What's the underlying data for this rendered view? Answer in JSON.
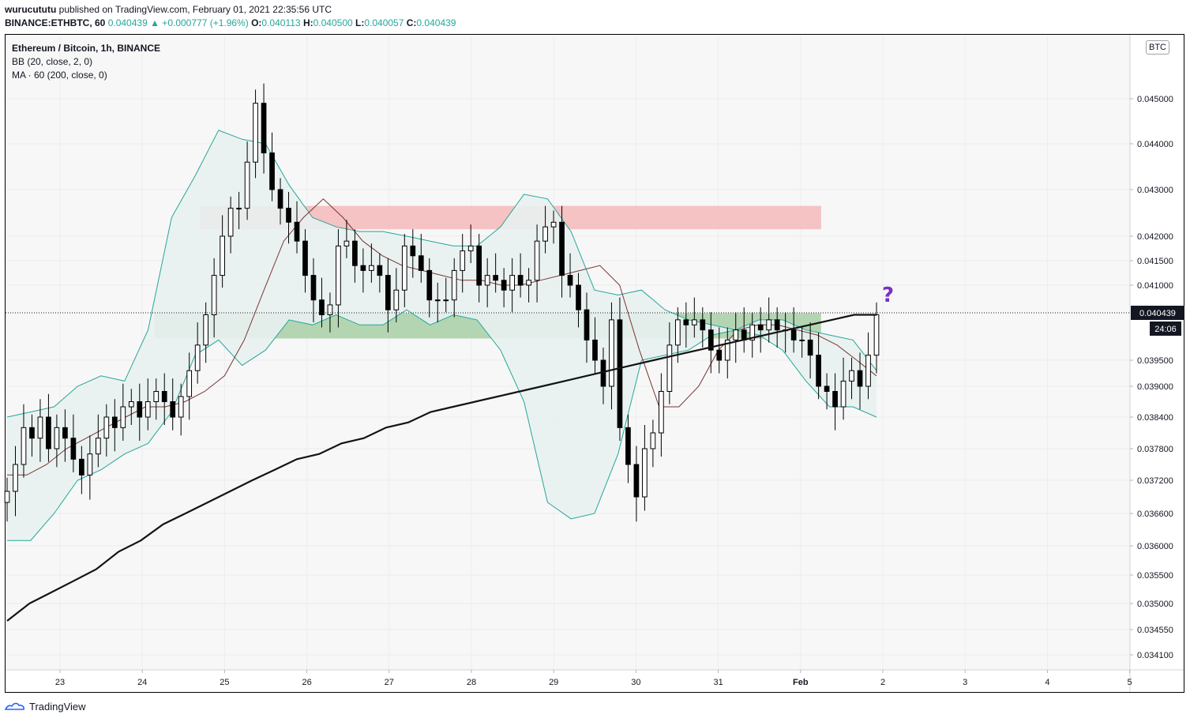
{
  "header": {
    "user": "wurucututu",
    "published_text": "published on TradingView.com, February 01, 2021 22:35:56 UTC",
    "symbol": "BINANCE:ETHBTC, 60",
    "last_price": "0.040439",
    "change": "▲ +0.000777 (+1.96%)",
    "o_label": "O:",
    "o_value": "0.040113",
    "h_label": "H:",
    "h_value": "0.040500",
    "l_label": "L:",
    "l_value": "0.040057",
    "c_label": "C:",
    "c_value": "0.040439"
  },
  "legend": {
    "title": "Ethereum / Bitcoin, 1h, BINANCE",
    "bb": "BB (20, close, 2, 0)",
    "ma": "MA · 60 (200, close, 0)"
  },
  "price_badge": "0.040439",
  "countdown_badge": "24:06",
  "unit_badge": "BTC",
  "annotation": "?",
  "footer": {
    "brand": "TradingView"
  },
  "colors": {
    "up": "#26a69a",
    "candle": "#000000",
    "bb_band": "#26a69a",
    "bb_fill": "#e8f1ef",
    "bb_basis": "#7b3434",
    "ma": "#131313",
    "resistance_zone": "#f4bcbc",
    "support_zone": "#a8cfa6",
    "annotation": "#7b2fbe"
  },
  "chart_data": {
    "type": "candlestick",
    "title": "Ethereum / Bitcoin, 1h, BINANCE",
    "unit": "BTC",
    "x_ticks": [
      "23",
      "24",
      "25",
      "26",
      "27",
      "28",
      "29",
      "30",
      "31",
      "Feb",
      "2",
      "3",
      "4",
      "5"
    ],
    "y_ticks": [
      "0.045000",
      "0.044000",
      "0.043000",
      "0.042000",
      "0.041500",
      "0.041000",
      "0.040439",
      "0.039500",
      "0.039000",
      "0.038400",
      "0.037800",
      "0.037200",
      "0.036600",
      "0.036000",
      "0.035500",
      "0.035000",
      "0.034550",
      "0.034100"
    ],
    "ylim": [
      0.03395,
      0.04605
    ],
    "zones": [
      {
        "name": "resistance",
        "y_from": 0.04215,
        "y_to": 0.04265,
        "x_from": 24.7,
        "x_to": 32.25
      },
      {
        "name": "support",
        "y_from": 0.03993,
        "y_to": 0.04043,
        "x_from": 24.15,
        "x_to": 32.25
      }
    ],
    "close": [
      0.037,
      0.0375,
      0.0382,
      0.038,
      0.0384,
      0.0378,
      0.0382,
      0.038,
      0.0376,
      0.0373,
      0.0377,
      0.038,
      0.0384,
      0.0382,
      0.0386,
      0.0387,
      0.0384,
      0.0387,
      0.0389,
      0.0387,
      0.0384,
      0.0388,
      0.0393,
      0.0398,
      0.0404,
      0.0412,
      0.042,
      0.0426,
      0.0426,
      0.0436,
      0.0449,
      0.0438,
      0.043,
      0.0426,
      0.0423,
      0.0419,
      0.0412,
      0.0407,
      0.0404,
      0.0406,
      0.0418,
      0.0419,
      0.0414,
      0.0413,
      0.0414,
      0.0412,
      0.0405,
      0.0409,
      0.0418,
      0.0416,
      0.0413,
      0.0407,
      0.0407,
      0.0407,
      0.0413,
      0.0417,
      0.0418,
      0.041,
      0.0412,
      0.0411,
      0.0409,
      0.0412,
      0.041,
      0.0411,
      0.0419,
      0.0422,
      0.0423,
      0.0412,
      0.041,
      0.0405,
      0.0399,
      0.0395,
      0.039,
      0.0403,
      0.0382,
      0.0375,
      0.0369,
      0.0378,
      0.0381,
      0.0389,
      0.0398,
      0.0403,
      0.0402,
      0.0403,
      0.0401,
      0.0397,
      0.0395,
      0.0399,
      0.0401,
      0.0399,
      0.0402,
      0.0401,
      0.0403,
      0.0401,
      0.0401,
      0.0399,
      0.0399,
      0.0396,
      0.039,
      0.0389,
      0.0386,
      0.0391,
      0.0393,
      0.039,
      0.0396,
      0.0404
    ],
    "ma200": [
      0.0347,
      0.035,
      0.0352,
      0.0354,
      0.0356,
      0.0359,
      0.0361,
      0.0364,
      0.0366,
      0.0368,
      0.037,
      0.0372,
      0.0374,
      0.0376,
      0.0377,
      0.0379,
      0.038,
      0.0382,
      0.0383,
      0.0385,
      0.0386,
      0.0387,
      0.0388,
      0.0389,
      0.039,
      0.0391,
      0.0392,
      0.0393,
      0.0394,
      0.0395,
      0.0396,
      0.0397,
      0.0398,
      0.0399,
      0.04,
      0.0401,
      0.0402,
      0.0403,
      0.0404,
      0.0404
    ],
    "bb_basis": [
      0.0373,
      0.0373,
      0.0375,
      0.0378,
      0.038,
      0.0382,
      0.0384,
      0.0386,
      0.0386,
      0.0387,
      0.0389,
      0.0392,
      0.0399,
      0.0409,
      0.0419,
      0.0424,
      0.0428,
      0.0424,
      0.0419,
      0.0416,
      0.0414,
      0.0413,
      0.0412,
      0.0411,
      0.0411,
      0.041,
      0.041,
      0.0411,
      0.0412,
      0.0413,
      0.0414,
      0.041,
      0.0397,
      0.0386,
      0.0386,
      0.039,
      0.0397,
      0.0401,
      0.0402,
      0.0402,
      0.0401,
      0.04,
      0.0398,
      0.0395,
      0.0392
    ],
    "bb_upper": [
      0.0384,
      0.0385,
      0.0386,
      0.039,
      0.0392,
      0.0391,
      0.0401,
      0.0424,
      0.0433,
      0.0443,
      0.0441,
      0.044,
      0.0431,
      0.0424,
      0.0422,
      0.0421,
      0.0421,
      0.042,
      0.0419,
      0.0418,
      0.0418,
      0.0422,
      0.0429,
      0.0428,
      0.0421,
      0.0409,
      0.0408,
      0.0409,
      0.0405,
      0.0403,
      0.0402,
      0.0401,
      0.0403,
      0.0403,
      0.0401,
      0.04,
      0.0399,
      0.0393
    ],
    "bb_lower": [
      0.0361,
      0.0361,
      0.0366,
      0.0372,
      0.0374,
      0.0377,
      0.0379,
      0.0385,
      0.0396,
      0.0399,
      0.0394,
      0.0397,
      0.0403,
      0.0402,
      0.0404,
      0.0402,
      0.0402,
      0.0405,
      0.0402,
      0.0404,
      0.0403,
      0.0397,
      0.0387,
      0.0368,
      0.0365,
      0.0366,
      0.0377,
      0.0395,
      0.0396,
      0.0397,
      0.04,
      0.0401,
      0.04,
      0.0397,
      0.0391,
      0.0386,
      0.0386,
      0.0384
    ]
  }
}
